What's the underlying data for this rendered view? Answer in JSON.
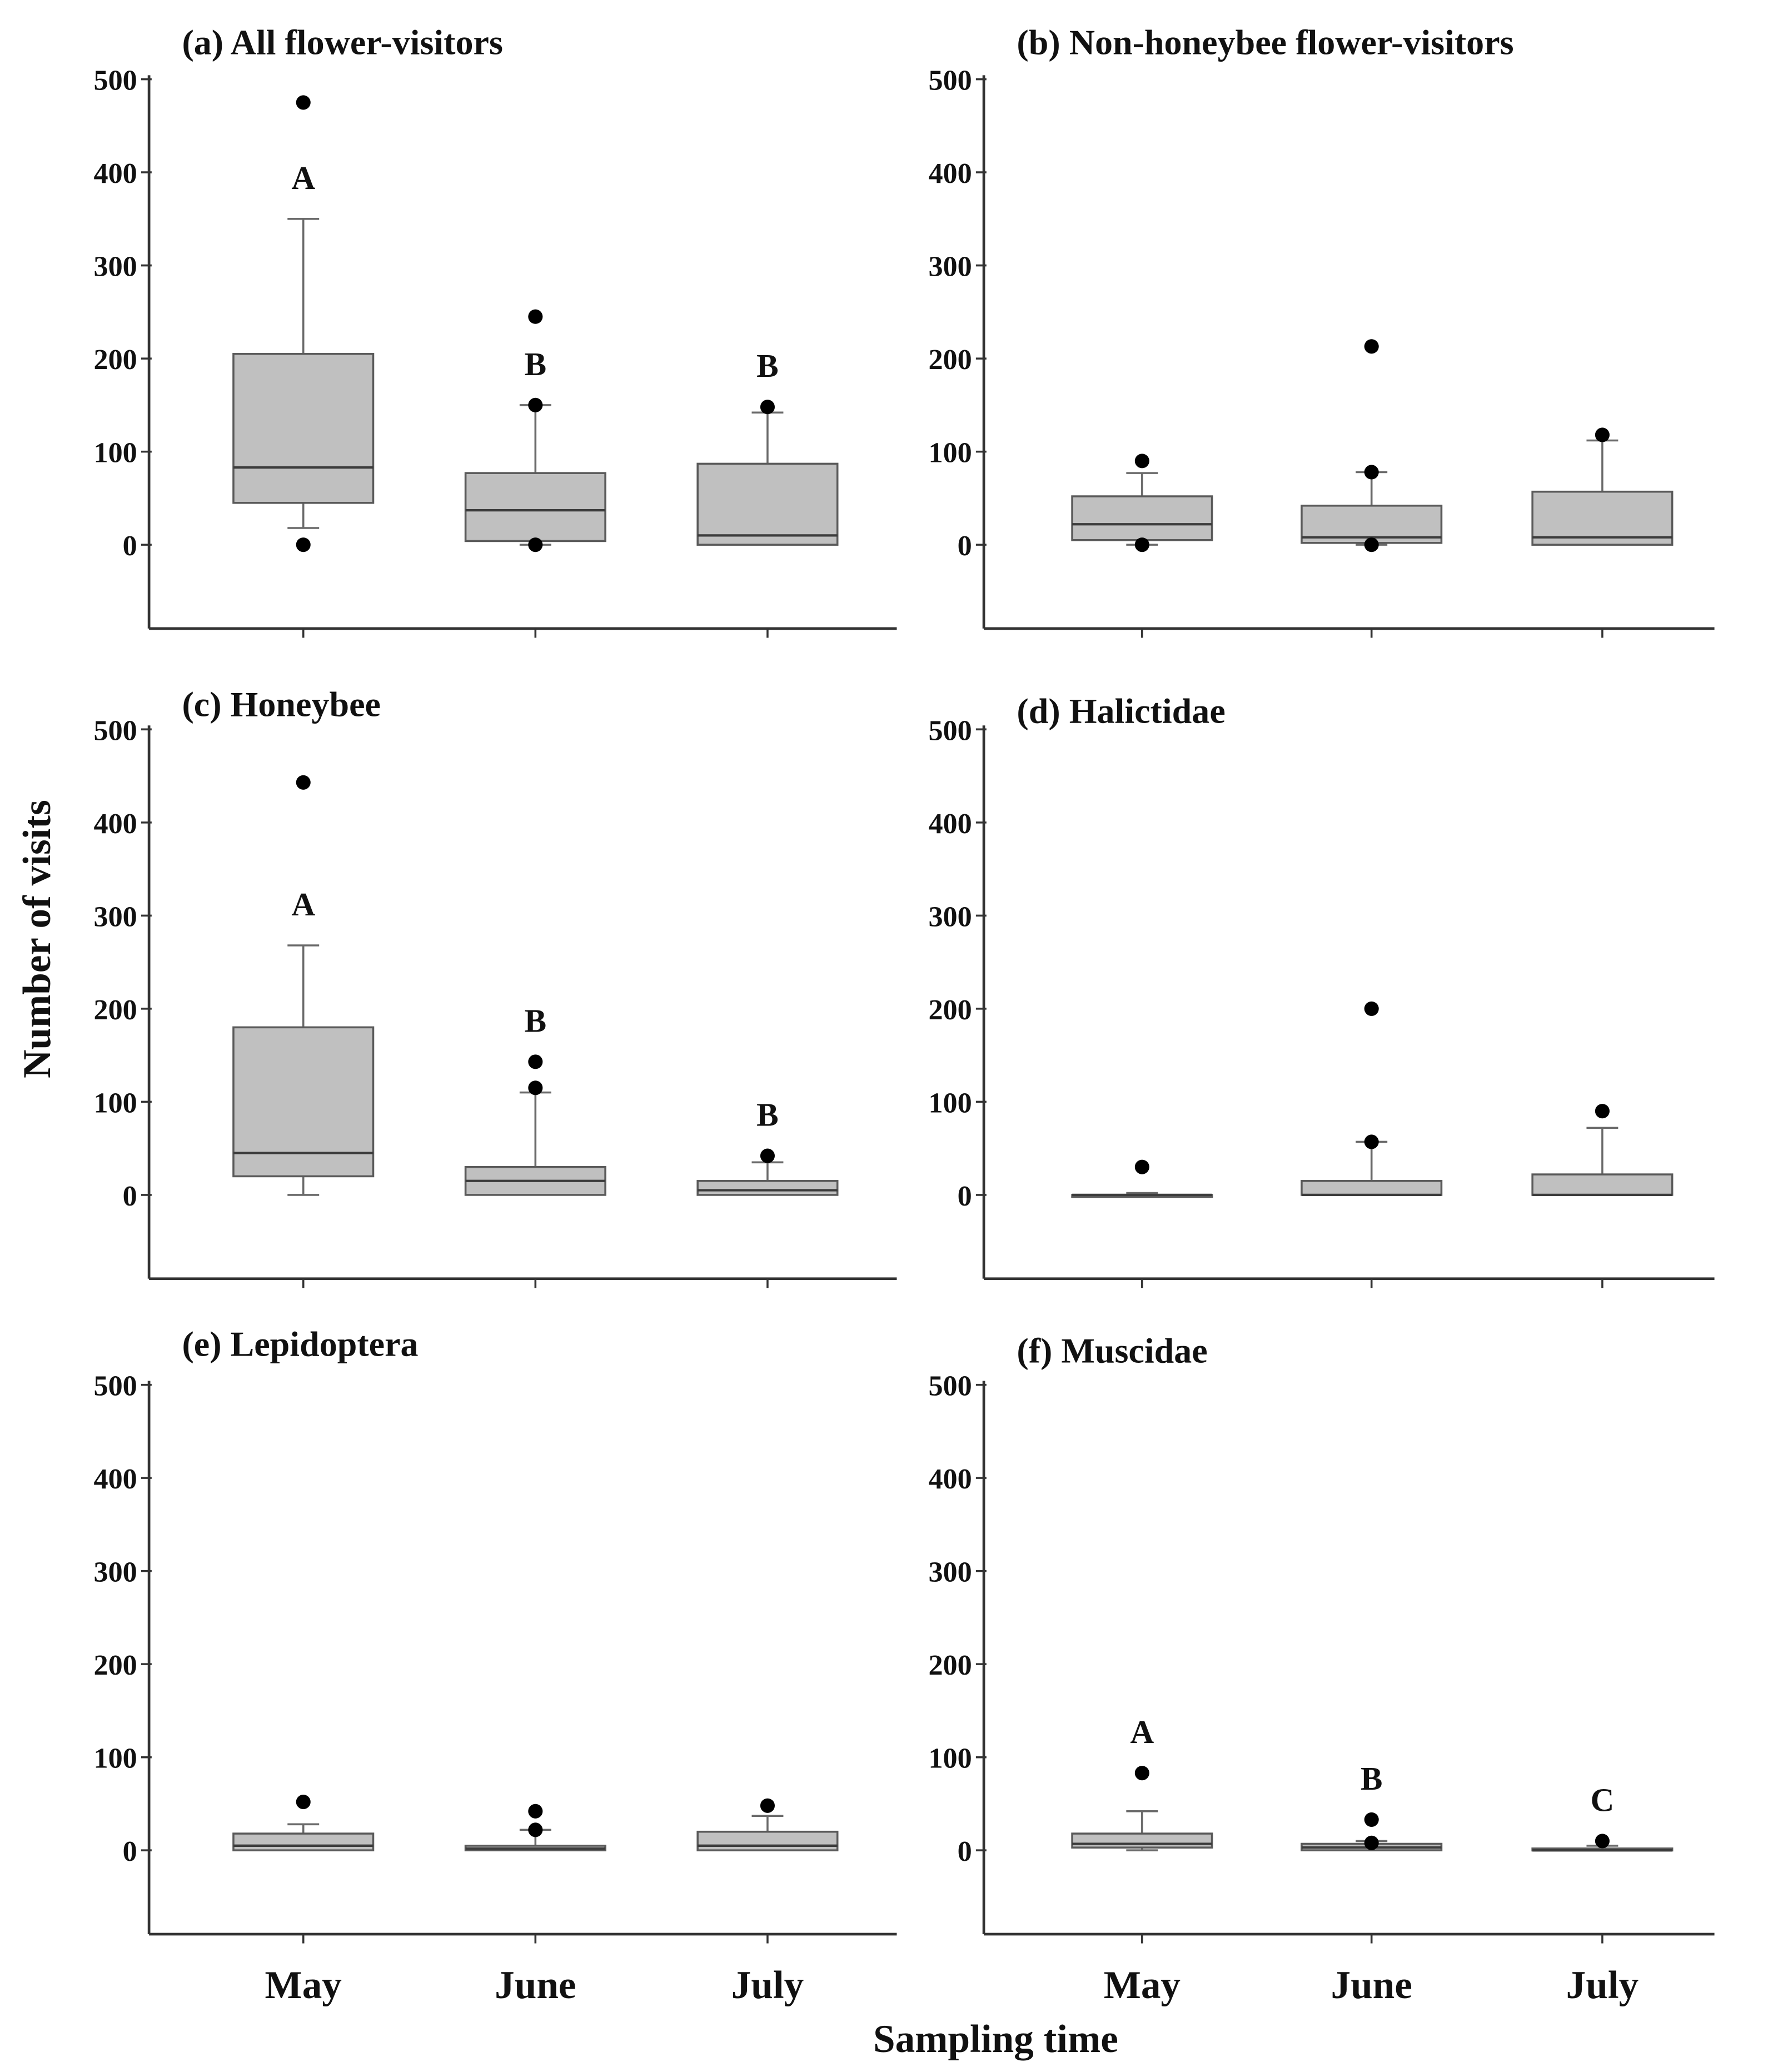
{
  "chart_data": {
    "type": "box",
    "xlabel": "Sampling time",
    "ylabel": "Number of visits",
    "categories": [
      "May",
      "June",
      "July"
    ],
    "ylim": [
      -90,
      500
    ],
    "yticks": [
      0,
      100,
      200,
      300,
      400,
      500
    ],
    "panels": [
      {
        "id": "a",
        "title": "(a) All flower-visitors",
        "boxes": [
          {
            "category": "May",
            "whisker_low": 18,
            "q1": 45,
            "median": 83,
            "q3": 205,
            "whisker_high": 350,
            "outliers": [
              475,
              0
            ],
            "letter": "A"
          },
          {
            "category": "June",
            "whisker_low": 0,
            "q1": 4,
            "median": 37,
            "q3": 77,
            "whisker_high": 150,
            "outliers": [
              245,
              150,
              0
            ],
            "letter": "B"
          },
          {
            "category": "July",
            "whisker_low": 0,
            "q1": 0,
            "median": 10,
            "q3": 87,
            "whisker_high": 142,
            "outliers": [
              148
            ],
            "letter": "B"
          }
        ]
      },
      {
        "id": "b",
        "title": "(b) Non-honeybee flower-visitors",
        "boxes": [
          {
            "category": "May",
            "whisker_low": 0,
            "q1": 5,
            "median": 22,
            "q3": 52,
            "whisker_high": 77,
            "outliers": [
              90,
              0
            ]
          },
          {
            "category": "June",
            "whisker_low": 0,
            "q1": 2,
            "median": 8,
            "q3": 42,
            "whisker_high": 78,
            "outliers": [
              213,
              78,
              0
            ]
          },
          {
            "category": "July",
            "whisker_low": 0,
            "q1": 0,
            "median": 8,
            "q3": 57,
            "whisker_high": 112,
            "outliers": [
              118
            ]
          }
        ]
      },
      {
        "id": "c",
        "title": "(c) Honeybee",
        "boxes": [
          {
            "category": "May",
            "whisker_low": 0,
            "q1": 20,
            "median": 45,
            "q3": 180,
            "whisker_high": 268,
            "outliers": [
              443
            ],
            "letter": "A"
          },
          {
            "category": "June",
            "whisker_low": 0,
            "q1": 0,
            "median": 15,
            "q3": 30,
            "whisker_high": 110,
            "outliers": [
              143,
              115
            ],
            "letter": "B"
          },
          {
            "category": "July",
            "whisker_low": 0,
            "q1": 0,
            "median": 5,
            "q3": 15,
            "whisker_high": 35,
            "outliers": [
              42
            ],
            "letter": "B"
          }
        ]
      },
      {
        "id": "d",
        "title": "(d) Halictidae",
        "boxes": [
          {
            "category": "May",
            "whisker_low": 0,
            "q1": 0,
            "median": 0,
            "q3": 0,
            "whisker_high": 2,
            "outliers": [
              30
            ]
          },
          {
            "category": "June",
            "whisker_low": 0,
            "q1": 0,
            "median": 0,
            "q3": 15,
            "whisker_high": 57,
            "outliers": [
              200,
              57
            ]
          },
          {
            "category": "July",
            "whisker_low": 0,
            "q1": 0,
            "median": 0,
            "q3": 22,
            "whisker_high": 72,
            "outliers": [
              90
            ]
          }
        ]
      },
      {
        "id": "e",
        "title": "(e) Lepidoptera",
        "boxes": [
          {
            "category": "May",
            "whisker_low": 0,
            "q1": 0,
            "median": 5,
            "q3": 18,
            "whisker_high": 28,
            "outliers": [
              52
            ]
          },
          {
            "category": "June",
            "whisker_low": 0,
            "q1": 0,
            "median": 2,
            "q3": 5,
            "whisker_high": 22,
            "outliers": [
              42,
              22
            ]
          },
          {
            "category": "July",
            "whisker_low": 0,
            "q1": 0,
            "median": 5,
            "q3": 20,
            "whisker_high": 37,
            "outliers": [
              48
            ]
          }
        ]
      },
      {
        "id": "f",
        "title": "(f) Muscidae",
        "boxes": [
          {
            "category": "May",
            "whisker_low": 0,
            "q1": 3,
            "median": 7,
            "q3": 18,
            "whisker_high": 42,
            "outliers": [
              83
            ],
            "letter": "A"
          },
          {
            "category": "June",
            "whisker_low": 0,
            "q1": 0,
            "median": 3,
            "q3": 7,
            "whisker_high": 10,
            "outliers": [
              33,
              8
            ],
            "letter": "B"
          },
          {
            "category": "July",
            "whisker_low": 0,
            "q1": 0,
            "median": 0,
            "q3": 2,
            "whisker_high": 5,
            "outliers": [
              10
            ],
            "letter": "C"
          }
        ]
      }
    ]
  },
  "colors": {
    "box_fill": "#c0c0c0",
    "box_stroke": "#5a5a5a",
    "median": "#3c3c3c",
    "whisker": "#6a6a6a",
    "outlier": "#000000",
    "axis": "#333333"
  }
}
